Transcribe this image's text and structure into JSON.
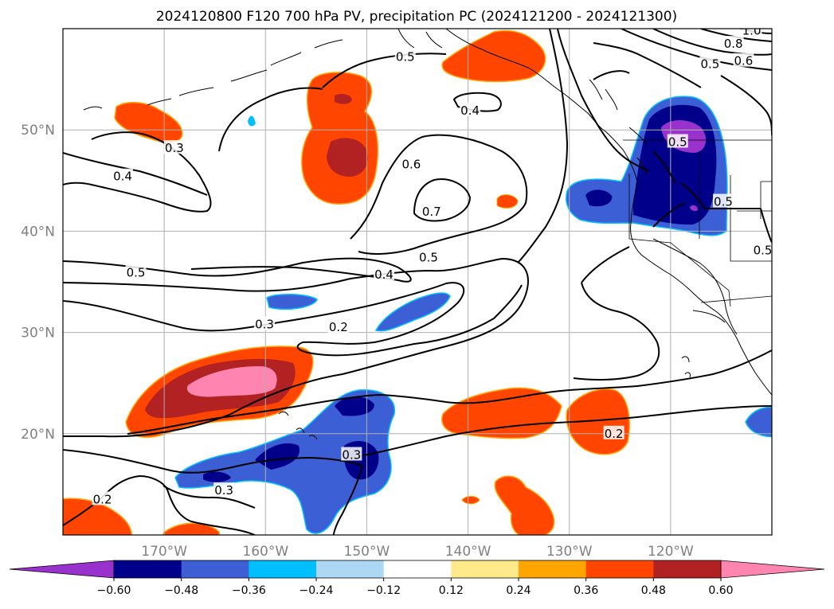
{
  "title": "2024120800 F120 700 hPa PV, precipitation PC (2024121200 - 2024121300)",
  "map": {
    "extent": {
      "lon_min": -180,
      "lon_max": -110,
      "lat_min": 10,
      "lat_max": 60
    },
    "gridlines": true,
    "lon_ticks": [
      {
        "value": -170,
        "label": "170°W"
      },
      {
        "value": -160,
        "label": "160°W"
      },
      {
        "value": -150,
        "label": "150°W"
      },
      {
        "value": -140,
        "label": "140°W"
      },
      {
        "value": -130,
        "label": "130°W"
      },
      {
        "value": -120,
        "label": "120°W"
      }
    ],
    "lat_ticks": [
      {
        "value": 20,
        "label": "20°N"
      },
      {
        "value": 30,
        "label": "30°N"
      },
      {
        "value": 40,
        "label": "40°N"
      },
      {
        "value": 50,
        "label": "50°N"
      }
    ],
    "contour_labels": [
      {
        "text": "0.5",
        "lon": -146.2,
        "lat": 57.2
      },
      {
        "text": "0.4",
        "lon": -139.8,
        "lat": 51.9
      },
      {
        "text": "0.8",
        "lon": -113.8,
        "lat": 58.5
      },
      {
        "text": "1.0",
        "lon": -112.0,
        "lat": 59.8
      },
      {
        "text": "0.6",
        "lon": -112.8,
        "lat": 56.8
      },
      {
        "text": "0.5",
        "lon": -116.1,
        "lat": 56.5
      },
      {
        "text": "0.3",
        "lon": -169.0,
        "lat": 48.2
      },
      {
        "text": "0.4",
        "lon": -174.1,
        "lat": 45.4
      },
      {
        "text": "0.6",
        "lon": -145.6,
        "lat": 46.6
      },
      {
        "text": "0.7",
        "lon": -143.6,
        "lat": 41.9
      },
      {
        "text": "0.5",
        "lon": -143.9,
        "lat": 37.4
      },
      {
        "text": "0.4",
        "lon": -148.3,
        "lat": 35.7
      },
      {
        "text": "0.5",
        "lon": -172.8,
        "lat": 35.9
      },
      {
        "text": "0.3",
        "lon": -160.1,
        "lat": 30.8
      },
      {
        "text": "0.2",
        "lon": -152.8,
        "lat": 30.5
      },
      {
        "text": "0.3",
        "lon": -151.5,
        "lat": 17.9
      },
      {
        "text": "0.3",
        "lon": -164.1,
        "lat": 14.4
      },
      {
        "text": "0.2",
        "lon": -176.1,
        "lat": 13.5
      },
      {
        "text": "0.2",
        "lon": -125.6,
        "lat": 20.0
      },
      {
        "text": "0.5",
        "lon": -114.8,
        "lat": 42.9
      },
      {
        "text": "0.5",
        "lon": -110.9,
        "lat": 38.1
      },
      {
        "text": "0.5",
        "lon": -119.3,
        "lat": 48.8
      }
    ]
  },
  "colorbar": {
    "levels": [
      -0.6,
      -0.48,
      -0.36,
      -0.24,
      -0.12,
      0.12,
      0.24,
      0.36,
      0.48,
      0.6
    ],
    "tick_labels": [
      "−0.60",
      "−0.48",
      "−0.36",
      "−0.24",
      "−0.12",
      "0.12",
      "0.24",
      "0.36",
      "0.48",
      "0.60"
    ],
    "colors": [
      "#9932cc",
      "#00008b",
      "#3d5fd6",
      "#00bfff",
      "#add8f5",
      "#ffffff",
      "#ffe98a",
      "#ffa500",
      "#ff4500",
      "#b22222",
      "#ff85b0"
    ],
    "extend": "both"
  }
}
